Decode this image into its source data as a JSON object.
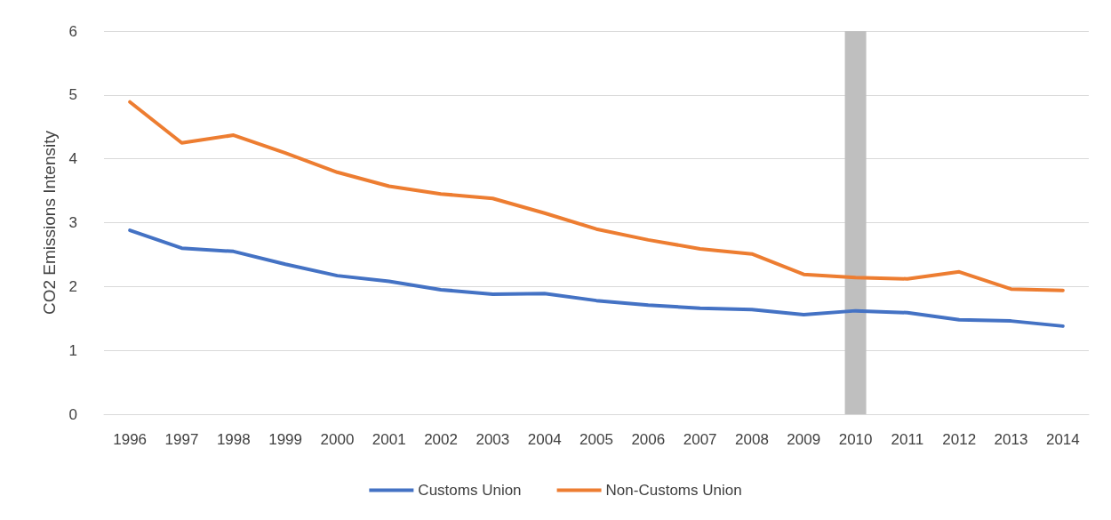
{
  "chart_data": {
    "type": "line",
    "ylabel": "CO2 Emissions Intensity",
    "categories": [
      "1996",
      "1997",
      "1998",
      "1999",
      "2000",
      "2001",
      "2002",
      "2003",
      "2004",
      "2005",
      "2006",
      "2007",
      "2008",
      "2009",
      "2010",
      "2011",
      "2012",
      "2013",
      "2014"
    ],
    "series": [
      {
        "type": "bar",
        "color": "#bfbfbf",
        "values": [
          null,
          null,
          null,
          null,
          null,
          null,
          null,
          null,
          null,
          null,
          null,
          null,
          null,
          null,
          6,
          null,
          null,
          null,
          null
        ]
      },
      {
        "name": "Customs Union",
        "color": "#4472c4",
        "values": [
          2.88,
          2.6,
          2.55,
          2.35,
          2.17,
          2.08,
          1.95,
          1.88,
          1.89,
          1.78,
          1.71,
          1.66,
          1.64,
          1.56,
          1.62,
          1.59,
          1.48,
          1.46,
          1.38
        ]
      },
      {
        "name": "Non-Customs Union",
        "color": "#ed7d31",
        "values": [
          4.89,
          4.25,
          4.37,
          4.09,
          3.79,
          3.57,
          3.45,
          3.38,
          3.15,
          2.9,
          2.73,
          2.59,
          2.51,
          2.19,
          2.14,
          2.12,
          2.23,
          1.96,
          1.94
        ]
      }
    ],
    "ylim": [
      0,
      6
    ],
    "yticks": [
      0,
      1,
      2,
      3,
      4,
      5,
      6
    ],
    "grid": "y",
    "legend": "bottom",
    "marker": "none",
    "line_style": "solid"
  }
}
